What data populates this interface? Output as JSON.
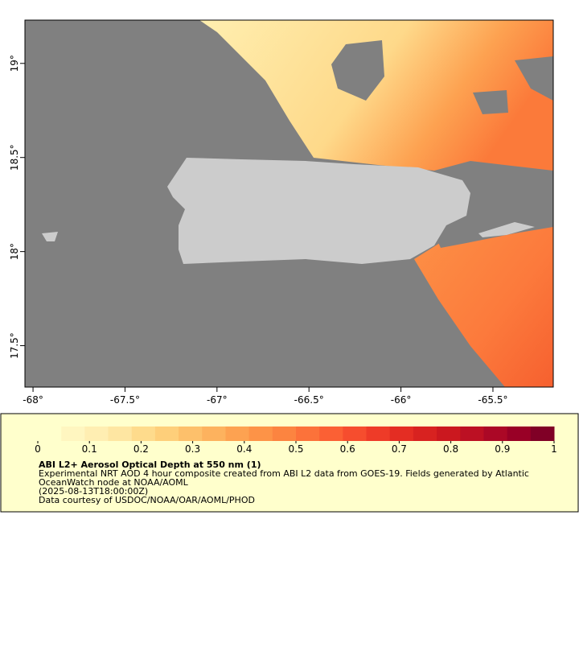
{
  "map": {
    "xlim": [
      -68.044,
      -65.172
    ],
    "ylim": [
      17.28,
      19.23
    ],
    "xticks": [
      {
        "value": -68,
        "label": "-68°"
      },
      {
        "value": -67.5,
        "label": "-67.5°"
      },
      {
        "value": -67,
        "label": "-67°"
      },
      {
        "value": -66.5,
        "label": "-66.5°"
      },
      {
        "value": -66,
        "label": "-66°"
      },
      {
        "value": -65.5,
        "label": "-65.5°"
      }
    ],
    "yticks": [
      {
        "value": 17.5,
        "label": "17.5°"
      },
      {
        "value": 18,
        "label": "18°"
      },
      {
        "value": 18.5,
        "label": "18.5°"
      },
      {
        "value": 19,
        "label": "19°"
      }
    ]
  },
  "colorbar": {
    "range": [
      0,
      1
    ],
    "ticks": [
      0,
      0.1,
      0.2,
      0.3,
      0.4,
      0.5,
      0.6,
      0.7,
      0.8,
      0.9,
      1
    ],
    "colors": [
      "#ffffcc",
      "#fff6c0",
      "#ffeeb2",
      "#fee6a2",
      "#fedb8c",
      "#fecf7a",
      "#fdc06b",
      "#fdb25e",
      "#fda251",
      "#fd9347",
      "#fc8440",
      "#fc723a",
      "#fb6034",
      "#f64d2e",
      "#ee3b28",
      "#e42d23",
      "#d82220",
      "#cb181f",
      "#bc1023",
      "#ab0826",
      "#990026",
      "#800026"
    ]
  },
  "caption": {
    "title": "ABI L2+ Aerosol Optical Depth at 550 nm (1)",
    "lines": [
      "Experimental NRT AOD 4 hour composite created from ABI L2 data from GOES-19. Fields generated by Atlantic",
      "OceanWatch node at NOAA/AOML",
      "(2025-08-13T18:00:00Z)",
      "Data courtesy of USDOC/NOAA/OAR/AOML/PHOD"
    ]
  }
}
